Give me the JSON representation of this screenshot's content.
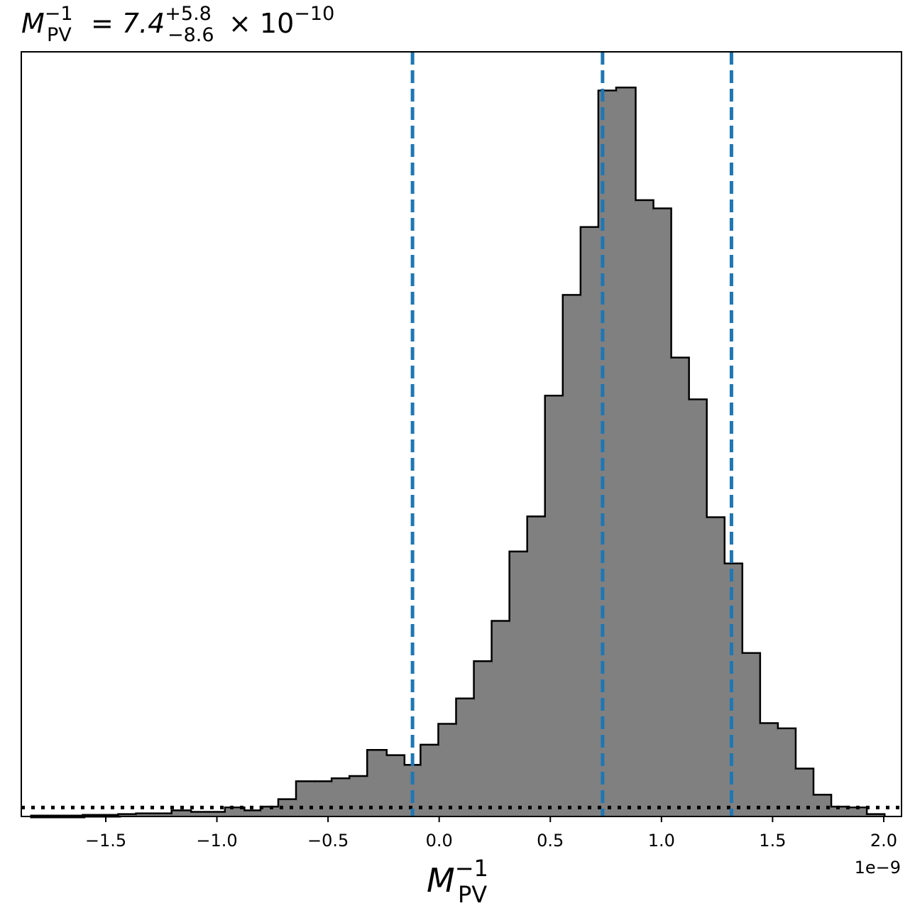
{
  "chart_data": {
    "type": "histogram",
    "title": {
      "lhs_symbol": "M",
      "lhs_sub": "PV",
      "lhs_sup": "−1",
      "equals": "=",
      "median": "7.4",
      "err_plus": "+5.8",
      "err_minus": "−8.6",
      "multiplier": "× 10",
      "exponent": "−10"
    },
    "xlabel": {
      "symbol": "M",
      "sub": "PV",
      "sup": "−1"
    },
    "offset_text": "1e−9",
    "xlim": [
      -1.88,
      2.08
    ],
    "ylim": [
      0,
      1025
    ],
    "x_ticks": [
      -1.5,
      -1.0,
      -0.5,
      0.0,
      0.5,
      1.0,
      1.5,
      2.0
    ],
    "x_tick_labels": [
      "−1.5",
      "−1.0",
      "−0.5",
      "0.0",
      "0.5",
      "1.0",
      "1.5",
      "2.0"
    ],
    "bin_edges": [
      -1.84,
      -1.76,
      -1.68,
      -1.6,
      -1.52,
      -1.44,
      -1.36,
      -1.28,
      -1.2,
      -1.12,
      -1.04,
      -0.96,
      -0.88,
      -0.8,
      -0.72,
      -0.64,
      -0.56,
      -0.48,
      -0.4,
      -0.32,
      -0.24,
      -0.16,
      -0.08,
      0.0,
      0.08,
      0.16,
      0.24,
      0.32,
      0.4,
      0.48,
      0.56,
      0.64,
      0.72,
      0.8,
      0.88,
      0.96,
      1.04,
      1.12,
      1.2,
      1.28,
      1.36,
      1.44,
      1.52,
      1.6,
      1.68,
      1.76,
      1.84,
      1.92,
      2.0
    ],
    "counts": [
      0,
      0,
      0,
      1,
      1,
      2,
      3,
      3,
      7,
      5,
      5,
      11,
      7,
      12,
      22,
      46,
      46,
      50,
      53,
      88,
      81,
      68,
      95,
      123,
      157,
      207,
      261,
      354,
      401,
      563,
      698,
      789,
      972,
      976,
      825,
      814,
      614,
      558,
      400,
      338,
      218,
      124,
      117,
      63,
      28,
      12,
      11,
      2,
      0
    ],
    "quantile_lines": [
      -0.12,
      0.735,
      1.315
    ],
    "reference_level": 12,
    "bar_color": "#808080",
    "edge_color": "#000000",
    "quantile_color": "#1f77b4",
    "reference_color": "#000000"
  }
}
